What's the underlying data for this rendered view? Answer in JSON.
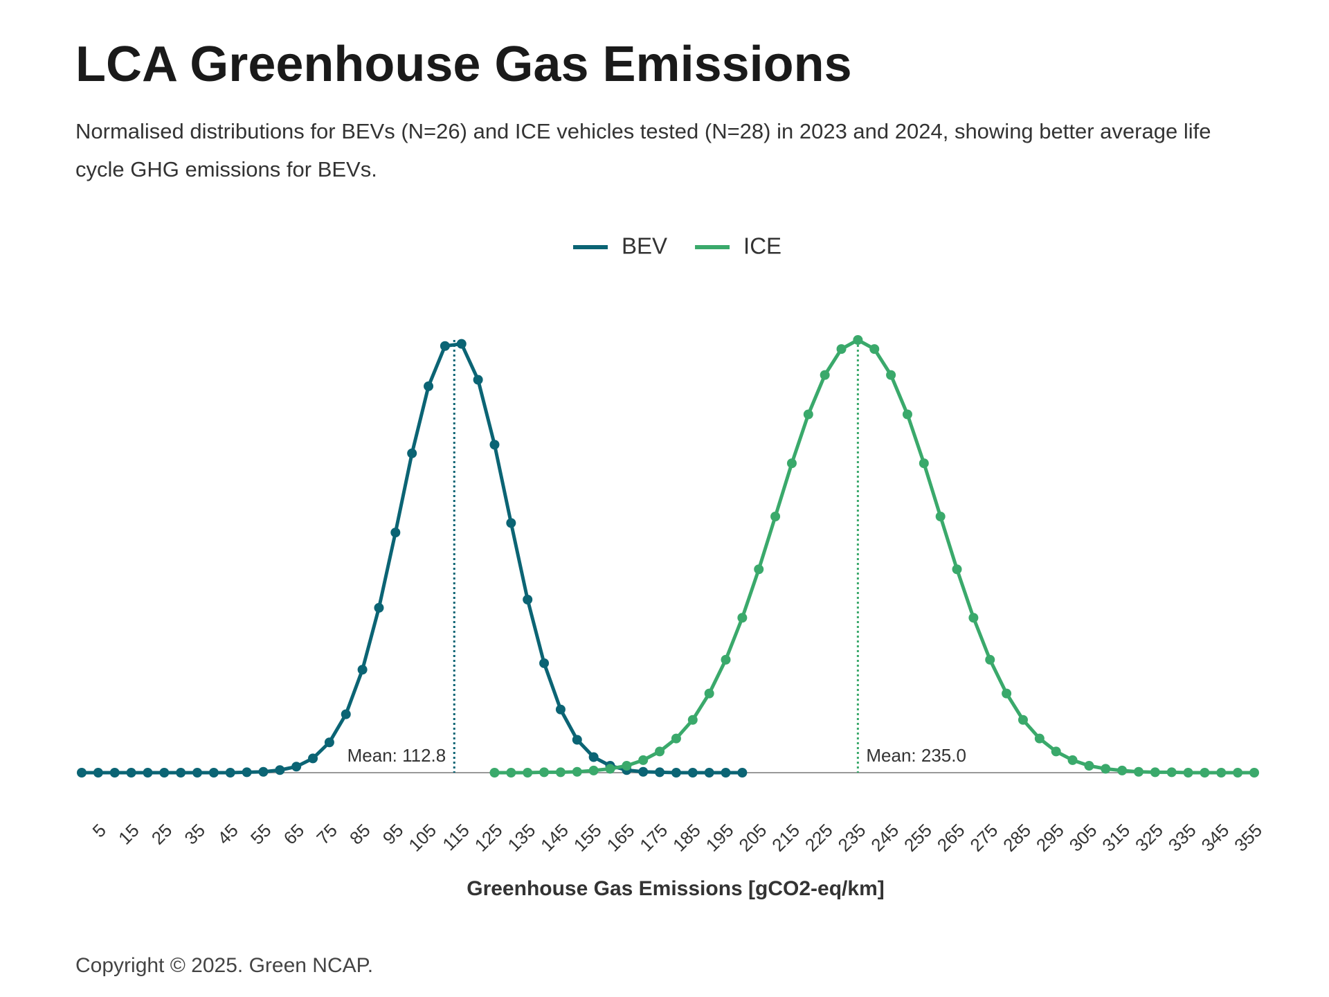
{
  "chart_data": {
    "type": "line",
    "title": "LCA Greenhouse Gas Emissions",
    "subtitle": "Normalised distributions for BEVs (N=26) and ICE vehicles tested (N=28) in 2023 and 2024, showing better average life cycle GHG emissions for BEVs.",
    "x_label": "Greenhouse Gas Emissions [gCO2-eq/km]",
    "copyright": "Copyright © 2025. Green NCAP.",
    "xlim": [
      0,
      355
    ],
    "ylim": [
      0,
      1
    ],
    "xticks": [
      5,
      15,
      25,
      35,
      45,
      55,
      65,
      75,
      85,
      95,
      105,
      115,
      125,
      135,
      145,
      155,
      165,
      175,
      185,
      195,
      205,
      215,
      225,
      235,
      245,
      255,
      265,
      275,
      285,
      295,
      305,
      315,
      325,
      335,
      345,
      355
    ],
    "grid": false,
    "legend": "top",
    "series": [
      {
        "name": "BEV",
        "color": "#0b6474",
        "x": [
          0,
          5,
          10,
          15,
          20,
          25,
          30,
          35,
          40,
          45,
          50,
          55,
          60,
          65,
          70,
          75,
          80,
          85,
          90,
          95,
          100,
          105,
          110,
          115,
          120,
          125,
          130,
          135,
          140,
          145,
          150,
          155,
          160,
          165,
          170,
          175,
          180,
          185,
          190,
          195,
          200
        ],
        "values": [
          0,
          0,
          0,
          0,
          0,
          0,
          0,
          0,
          0,
          0,
          0.001,
          0.002,
          0.006,
          0.014,
          0.033,
          0.07,
          0.135,
          0.238,
          0.381,
          0.555,
          0.738,
          0.893,
          0.986,
          0.991,
          0.908,
          0.758,
          0.577,
          0.4,
          0.253,
          0.146,
          0.076,
          0.036,
          0.016,
          0.006,
          0.002,
          0.001,
          0,
          0,
          0,
          0,
          0
        ]
      },
      {
        "name": "ICE",
        "color": "#3aa96b",
        "x": [
          125,
          130,
          135,
          140,
          145,
          150,
          155,
          160,
          165,
          170,
          175,
          180,
          185,
          190,
          195,
          200,
          205,
          210,
          215,
          220,
          225,
          230,
          235,
          240,
          245,
          250,
          255,
          260,
          265,
          270,
          275,
          280,
          285,
          290,
          295,
          300,
          305,
          310,
          315,
          320,
          325,
          330,
          335,
          340,
          345,
          350,
          355
        ],
        "values": [
          0,
          0,
          0,
          0.001,
          0.001,
          0.002,
          0.005,
          0.009,
          0.016,
          0.029,
          0.049,
          0.079,
          0.122,
          0.183,
          0.261,
          0.358,
          0.47,
          0.592,
          0.715,
          0.828,
          0.919,
          0.979,
          1,
          0.979,
          0.919,
          0.828,
          0.715,
          0.592,
          0.47,
          0.358,
          0.261,
          0.183,
          0.122,
          0.079,
          0.049,
          0.029,
          0.016,
          0.009,
          0.005,
          0.002,
          0.001,
          0.001,
          0,
          0,
          0,
          0,
          0
        ]
      }
    ],
    "annotations": [
      {
        "text": "Mean: 112.8",
        "x": 112.8
      },
      {
        "text": "Mean: 235.0",
        "x": 235.0
      }
    ]
  }
}
